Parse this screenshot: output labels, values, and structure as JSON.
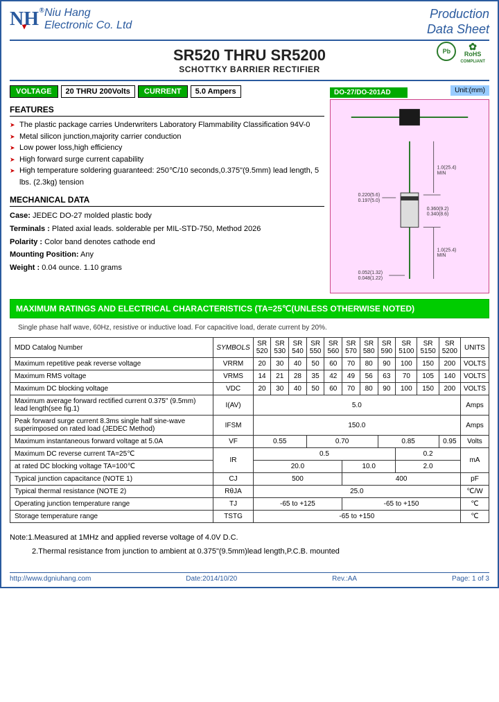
{
  "header": {
    "logo_text": "NH",
    "company_line1": "Niu Hang",
    "company_line2": "Electronic Co. Ltd",
    "doc_line1": "Production",
    "doc_line2": "Data Sheet"
  },
  "title": {
    "main": "SR520 THRU SR5200",
    "sub": "SCHOTTKY BARRIER RECTIFIER"
  },
  "badges": {
    "pb": "Pb",
    "pb_sub": "Pb-Free",
    "rohs1": "RoHS",
    "rohs2": "COMPLIANT"
  },
  "pills": {
    "voltage_label": "VOLTAGE",
    "voltage_value": "20 THRU 200Volts",
    "current_label": "CURRENT",
    "current_value": "5.0 Ampers",
    "package_label": "DO-27/DO-201AD",
    "unit_label": "Unit:(mm)"
  },
  "sections": {
    "features": "FEATURES",
    "mech": "MECHANICAL DATA",
    "max": "MAXIMUM RATINGS AND ELECTRICAL CHARACTERISTICS (TA=25℃(UNLESS OTHERWISE NOTED)"
  },
  "features": [
    "The plastic package carries Underwriters Laboratory Flammability Classification 94V-0",
    "Metal silicon junction,majority carrier conduction",
    "Low power loss,high efficiency",
    "High forward surge current capability",
    "High temperature soldering guaranteed: 250℃/10 seconds,0.375\"(9.5mm) lead length, 5 lbs. (2.3kg) tension"
  ],
  "mech": {
    "case_l": "Case:",
    "case_v": " JEDEC DO-27 molded plastic body",
    "term_l": "Terminals :",
    "term_v": " Plated axial leads. solderable per MIL-STD-750, Method 2026",
    "pol_l": "Polarity :",
    "pol_v": " Color band denotes cathode end",
    "mount_l": "Mounting Position:",
    "mount_v": " Any",
    "weight_l": "Weight :",
    "weight_v": " 0.04 ounce. 1.10 grams"
  },
  "note_sub": "Single phase half wave, 60Hz, resistive or inductive load. For capacitive load, derate current by 20%.",
  "table": {
    "h_param": "MDD Catalog  Number",
    "h_sym": "SYMBOLS",
    "parts": [
      "SR 520",
      "SR 530",
      "SR 540",
      "SR 550",
      "SR 560",
      "SR 570",
      "SR 580",
      "SR 590",
      "SR 5100",
      "SR 5150",
      "SR 5200"
    ],
    "h_units": "UNITS",
    "rows": [
      {
        "p": "Maximum repetitive peak reverse voltage",
        "s": "VRRM",
        "v": [
          "20",
          "30",
          "40",
          "50",
          "60",
          "70",
          "80",
          "90",
          "100",
          "150",
          "200"
        ],
        "u": "VOLTS"
      },
      {
        "p": "Maximum RMS voltage",
        "s": "VRMS",
        "v": [
          "14",
          "21",
          "28",
          "35",
          "42",
          "49",
          "56",
          "63",
          "70",
          "105",
          "140"
        ],
        "u": "VOLTS"
      },
      {
        "p": "Maximum DC blocking voltage",
        "s": "VDC",
        "v": [
          "20",
          "30",
          "40",
          "50",
          "60",
          "70",
          "80",
          "90",
          "100",
          "150",
          "200"
        ],
        "u": "VOLTS"
      }
    ],
    "row_iav": {
      "p": "Maximum average forward rectified current 0.375\" (9.5mm) lead length(see fig.1)",
      "s": "I(AV)",
      "v": "5.0",
      "u": "Amps"
    },
    "row_ifsm": {
      "p": "Peak forward surge current 8.3ms single half sine-wave superimposed on rated load (JEDEC Method)",
      "s": "IFSM",
      "v": "150.0",
      "u": "Amps"
    },
    "row_vf": {
      "p": "Maximum instantaneous forward voltage at 5.0A",
      "s": "VF",
      "v": [
        "0.55",
        "0.70",
        "0.85",
        "0.95"
      ],
      "u": "Volts"
    },
    "row_ir1": {
      "p": "Maximum DC reverse current    TA=25℃",
      "s": "IR",
      "v": [
        "0.5",
        "0.2"
      ],
      "u": "mA"
    },
    "row_ir2": {
      "p": "at rated DC blocking voltage    TA=100℃",
      "v": [
        "20.0",
        "10.0",
        "2.0"
      ]
    },
    "row_cj": {
      "p": "Typical junction capacitance (NOTE 1)",
      "s": "CJ",
      "v": [
        "500",
        "400"
      ],
      "u": "pF"
    },
    "row_rja": {
      "p": "Typical thermal resistance (NOTE 2)",
      "s": "RθJA",
      "v": "25.0",
      "u": "℃/W"
    },
    "row_tj": {
      "p": "Operating junction temperature range",
      "s": "TJ",
      "v": [
        "-65 to +125",
        "-65 to +150"
      ],
      "u": "℃"
    },
    "row_tstg": {
      "p": "Storage temperature range",
      "s": "TSTG",
      "v": "-65 to +150",
      "u": "℃"
    }
  },
  "notes": {
    "n1": "Note:1.Measured at 1MHz and applied reverse voltage of 4.0V D.C.",
    "n2": "2.Thermal resistance from junction to ambient  at 0.375\"(9.5mm)lead length,P.C.B. mounted"
  },
  "footer": {
    "url": "http://www.dgniuhang.com",
    "date": "Date:2014/10/20",
    "rev": "Rev.:AA",
    "page": "Page: 1 of 3"
  },
  "diagram": {
    "body_color": "#1a1a1a",
    "lead_color": "#2a7a2a",
    "border_color": "#c04888",
    "bg_color": "#fce8f4"
  }
}
